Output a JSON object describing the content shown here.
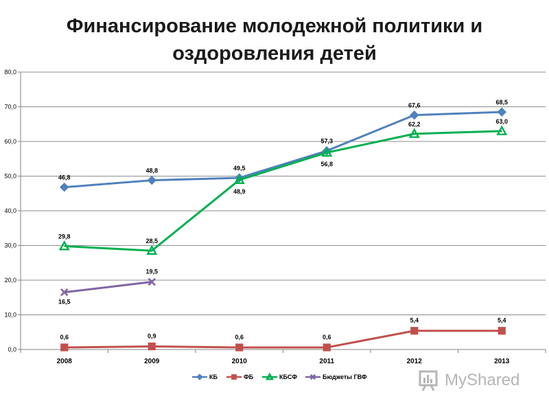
{
  "chart_data": {
    "type": "line",
    "title_lines": [
      "Финансирование молодежной политики и",
      "оздоровления детей"
    ],
    "categories": [
      "2008",
      "2009",
      "2010",
      "2011",
      "2012",
      "2013"
    ],
    "ylim": [
      0,
      80
    ],
    "yticks": [
      "0,0",
      "10,0",
      "20,0",
      "30,0",
      "40,0",
      "50,0",
      "60,0",
      "70,0",
      "80,0"
    ],
    "grid": true,
    "legend_position": "bottom",
    "series": [
      {
        "name": "КБ",
        "color": "#4F81BD",
        "marker": "diamond",
        "values": [
          46.8,
          48.8,
          49.5,
          57.3,
          67.6,
          68.5
        ],
        "labels": [
          "46,8",
          "48,8",
          "49,5",
          "57,3",
          "67,6",
          "68,5"
        ]
      },
      {
        "name": "ФБ",
        "color": "#C0504D",
        "marker": "square",
        "values": [
          0.6,
          0.9,
          0.6,
          0.6,
          5.4,
          5.4
        ],
        "labels": [
          "0,6",
          "0,9",
          "0,6",
          "0,6",
          "5,4",
          "5,4"
        ]
      },
      {
        "name": "КБСФ",
        "color": "#00B050",
        "marker": "triangle",
        "values": [
          29.8,
          28.5,
          48.9,
          56.8,
          62.2,
          63.0
        ],
        "labels": [
          "29,8",
          "28,5",
          "48,9",
          "56,8",
          "62,2",
          "63,0"
        ]
      },
      {
        "name": "Бюджеты ГВФ",
        "color": "#8064A2",
        "marker": "x",
        "values": [
          16.5,
          19.5,
          null,
          null,
          null,
          null
        ],
        "labels": [
          "16,5",
          "19,5",
          null,
          null,
          null,
          null
        ]
      }
    ]
  },
  "watermark": "MyShared"
}
